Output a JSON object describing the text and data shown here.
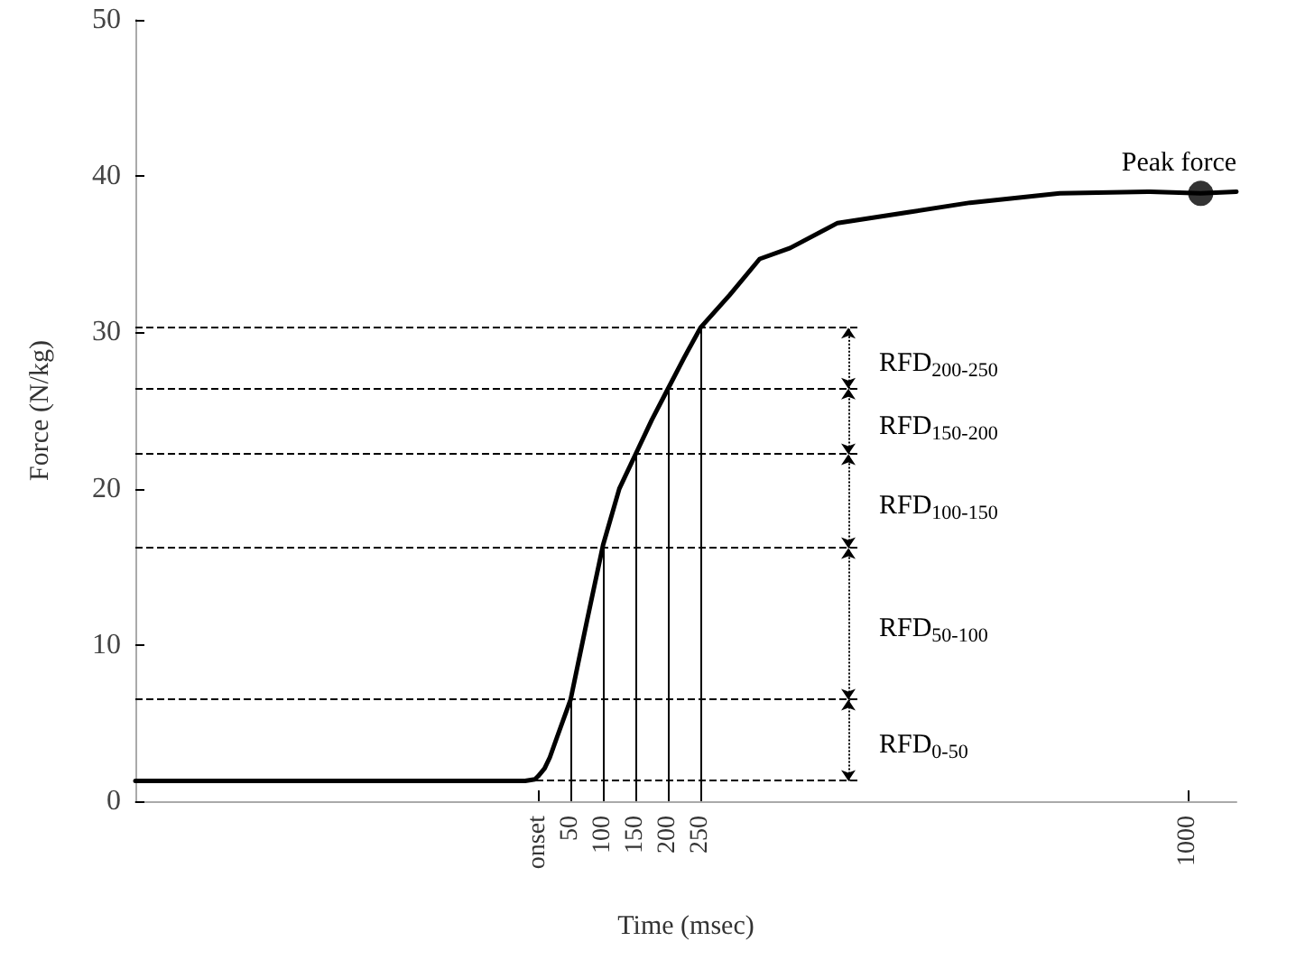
{
  "chart_data": {
    "type": "line",
    "xlabel": "Time (msec)",
    "ylabel": "Force (N/kg)",
    "xlim": [
      -620,
      1075
    ],
    "ylim": [
      0,
      50
    ],
    "xticks": [
      {
        "value": 0,
        "label": "onset"
      },
      50,
      100,
      150,
      200,
      250,
      1000
    ],
    "yticks": [
      0,
      10,
      20,
      30,
      40,
      50
    ],
    "grid": false,
    "line_style": "solid",
    "series": [
      {
        "color": "#000000",
        "x": [
          -620,
          -400,
          -200,
          -20,
          -5,
          0,
          10,
          18,
          30,
          50,
          75,
          100,
          125,
          150,
          175,
          200,
          225,
          250,
          295,
          341,
          388,
          461,
          572,
          665,
          803,
          942,
          1020,
          1075
        ],
        "values": [
          1.3,
          1.3,
          1.3,
          1.3,
          1.4,
          1.6,
          2.1,
          2.8,
          4.2,
          6.5,
          11.5,
          16.4,
          20,
          22.2,
          24.4,
          26.4,
          28.4,
          30.3,
          32.4,
          34.7,
          35.4,
          37,
          37.7,
          38.3,
          38.9,
          39,
          38.9,
          39
        ]
      },
      {
        "type": "scatter",
        "color": "#000000",
        "x": [
          1020
        ],
        "values": [
          38.9
        ]
      }
    ],
    "ref_lines": [
      {
        "axis": "y",
        "value": 1.3,
        "color": "#000000",
        "line_style": "dashed"
      },
      {
        "axis": "y",
        "value": 6.5,
        "color": "#000000",
        "line_style": "dashed"
      },
      {
        "axis": "y",
        "value": 16.2,
        "color": "#000000",
        "line_style": "dashed"
      },
      {
        "axis": "y",
        "value": 22.2,
        "color": "#000000",
        "line_style": "dashed"
      },
      {
        "axis": "y",
        "value": 26.4,
        "color": "#000000",
        "line_style": "dashed"
      },
      {
        "axis": "y",
        "value": 30.3,
        "color": "#000000",
        "line_style": "dashed"
      },
      {
        "axis": "x",
        "value": 50,
        "color": "#000000",
        "line_style": "solid"
      },
      {
        "axis": "x",
        "value": 100,
        "color": "#000000",
        "line_style": "solid"
      },
      {
        "axis": "x",
        "value": 150,
        "color": "#000000",
        "line_style": "solid"
      },
      {
        "axis": "x",
        "value": 200,
        "color": "#000000",
        "line_style": "solid"
      },
      {
        "axis": "x",
        "value": 250,
        "color": "#000000",
        "line_style": "solid"
      }
    ],
    "annotations": [
      "RFD$_{0-50}$",
      "RFD$_{50-100}$",
      "RFD$_{100-150}$",
      "RFD$_{150-200}$",
      "RFD$_{200-250}$",
      {
        "text": "Peak force",
        "x": 1020,
        "y": 38.9
      }
    ]
  }
}
